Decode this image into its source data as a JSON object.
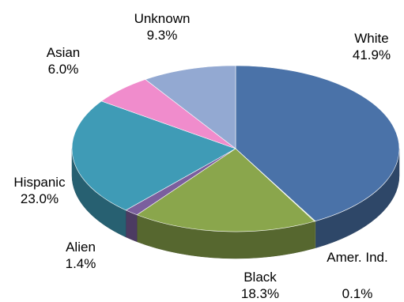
{
  "chart_data": {
    "type": "pie",
    "title": "",
    "style": "3d",
    "slices": [
      {
        "label": "White",
        "value": 41.9,
        "value_label": "41.9%",
        "color": "#4a72a8"
      },
      {
        "label": "Amer. Ind.",
        "value": 0.1,
        "value_label": "0.1%",
        "color": "#b9cf6c"
      },
      {
        "label": "Black",
        "value": 18.3,
        "value_label": "18.3%",
        "color": "#8aa64c"
      },
      {
        "label": "Alien",
        "value": 1.4,
        "value_label": "1.4%",
        "color": "#7b5f9e"
      },
      {
        "label": "Hispanic",
        "value": 23.0,
        "value_label": "23.0%",
        "color": "#3f9bb6"
      },
      {
        "label": "Asian",
        "value": 6.0,
        "value_label": "6.0%",
        "color": "#f08ccc"
      },
      {
        "label": "Unknown",
        "value": 9.3,
        "value_label": "9.3%",
        "color": "#93a9d2"
      }
    ]
  }
}
